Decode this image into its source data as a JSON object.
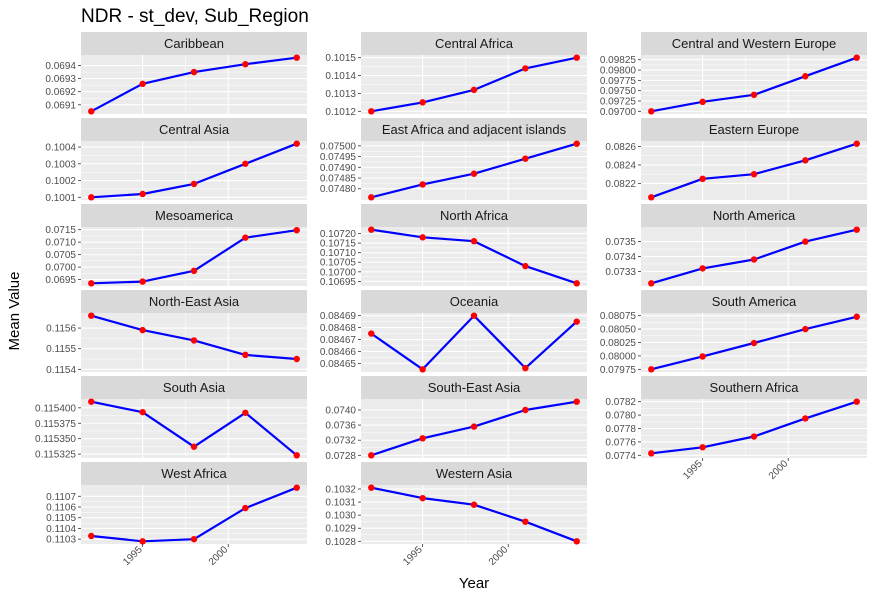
{
  "chart_data": {
    "type": "line",
    "title": "NDR - st_dev, Sub_Region",
    "xlabel": "Year",
    "ylabel": "Mean Value",
    "x": [
      1992,
      1995,
      1998,
      2001,
      2004
    ],
    "xlim": [
      1991.4,
      2004.6
    ],
    "x_ticks": [
      1995,
      2000
    ],
    "line_color": "#0000ff",
    "point_color": "#ff0000",
    "panel_bg": "#ebebeb",
    "strip_bg": "#d9d9d9",
    "grid_color": "#ffffff",
    "panels": [
      {
        "name": "Caribbean",
        "y": [
          0.06905,
          0.06926,
          0.06935,
          0.06941,
          0.06946
        ],
        "y_ticks": [
          "0.0691",
          "0.0692",
          "0.0693",
          "0.0694"
        ],
        "y_tick_values": [
          0.0691,
          0.0692,
          0.0693,
          0.0694
        ]
      },
      {
        "name": "Central Africa",
        "y": [
          0.1012,
          0.10125,
          0.10132,
          0.10144,
          0.1015
        ],
        "y_ticks": [
          "0.1012",
          "0.1013",
          "0.1014",
          "0.1015"
        ],
        "y_tick_values": [
          0.1012,
          0.1013,
          0.1014,
          0.1015
        ]
      },
      {
        "name": "Central and Western Europe",
        "y": [
          0.097,
          0.09723,
          0.0974,
          0.09785,
          0.0983
        ],
        "y_ticks": [
          "0.09700",
          "0.09725",
          "0.09750",
          "0.09775",
          "0.09800",
          "0.09825"
        ],
        "y_tick_values": [
          0.097,
          0.09725,
          0.0975,
          0.09775,
          0.098,
          0.09825
        ]
      },
      {
        "name": "Central Asia",
        "y": [
          0.1001,
          0.10012,
          0.10018,
          0.1003,
          0.10042
        ],
        "y_ticks": [
          "0.1001",
          "0.1002",
          "0.1003",
          "0.1004"
        ],
        "y_tick_values": [
          0.1001,
          0.1002,
          0.1003,
          0.1004
        ]
      },
      {
        "name": "East Africa and adjacent islands",
        "y": [
          0.07476,
          0.07482,
          0.07487,
          0.07494,
          0.07501
        ],
        "y_ticks": [
          "0.07480",
          "0.07485",
          "0.07490",
          "0.07495",
          "0.07500"
        ],
        "y_tick_values": [
          0.0748,
          0.07485,
          0.0749,
          0.07495,
          0.075
        ]
      },
      {
        "name": "Eastern Europe",
        "y": [
          0.08205,
          0.08225,
          0.0823,
          0.08245,
          0.08263
        ],
        "y_ticks": [
          "0.0822",
          "0.0824",
          "0.0826"
        ],
        "y_tick_values": [
          0.0822,
          0.0824,
          0.0826
        ]
      },
      {
        "name": "Mesoamerica",
        "y": [
          0.06935,
          0.06942,
          0.06985,
          0.07118,
          0.07148
        ],
        "y_ticks": [
          "0.0695",
          "0.0700",
          "0.0705",
          "0.0710",
          "0.0715"
        ],
        "y_tick_values": [
          0.0695,
          0.07,
          0.0705,
          0.071,
          0.0715
        ]
      },
      {
        "name": "North Africa",
        "y": [
          0.10722,
          0.10718,
          0.10716,
          0.10703,
          0.10694
        ],
        "y_ticks": [
          "0.10695",
          "0.10700",
          "0.10705",
          "0.10710",
          "0.10715",
          "0.10720"
        ],
        "y_tick_values": [
          0.10695,
          0.107,
          0.10705,
          0.1071,
          0.10715,
          0.1072
        ]
      },
      {
        "name": "North America",
        "y": [
          0.07322,
          0.07332,
          0.07338,
          0.0735,
          0.07358
        ],
        "y_ticks": [
          "0.0733",
          "0.0734",
          "0.0735"
        ],
        "y_tick_values": [
          0.0733,
          0.0734,
          0.0735
        ]
      },
      {
        "name": "North-East Asia",
        "y": [
          0.11566,
          0.11559,
          0.11554,
          0.11547,
          0.11545
        ],
        "y_ticks": [
          "0.1154",
          "0.1155",
          "0.1156"
        ],
        "y_tick_values": [
          0.1154,
          0.1155,
          0.1156
        ]
      },
      {
        "name": "Oceania",
        "y": [
          0.084675,
          0.084645,
          0.08469,
          0.084646,
          0.084685
        ],
        "y_ticks": [
          "0.08465",
          "0.08466",
          "0.08467",
          "0.08468",
          "0.08469"
        ],
        "y_tick_values": [
          0.08465,
          0.08466,
          0.08467,
          0.08468,
          0.08469
        ]
      },
      {
        "name": "South America",
        "y": [
          0.07975,
          0.07999,
          0.08024,
          0.0805,
          0.08073
        ],
        "y_ticks": [
          "0.07975",
          "0.08000",
          "0.08025",
          "0.08050",
          "0.08075"
        ],
        "y_tick_values": [
          0.07975,
          0.08,
          0.08025,
          0.0805,
          0.08075
        ]
      },
      {
        "name": "South Asia",
        "y": [
          0.11541,
          0.115393,
          0.115337,
          0.115392,
          0.115323
        ],
        "y_ticks": [
          "0.115325",
          "0.115350",
          "0.115375",
          "0.115400"
        ],
        "y_tick_values": [
          0.115325,
          0.11535,
          0.115375,
          0.1154
        ]
      },
      {
        "name": "South-East Asia",
        "y": [
          0.0728,
          0.07325,
          0.07356,
          0.074,
          0.07422
        ],
        "y_ticks": [
          "0.0728",
          "0.0732",
          "0.0736",
          "0.0740"
        ],
        "y_tick_values": [
          0.0728,
          0.0732,
          0.0736,
          0.074
        ]
      },
      {
        "name": "Southern Africa",
        "y": [
          0.07743,
          0.07752,
          0.07768,
          0.07795,
          0.0782
        ],
        "y_ticks": [
          "0.0774",
          "0.0776",
          "0.0778",
          "0.0780",
          "0.0782"
        ],
        "y_tick_values": [
          0.0774,
          0.0776,
          0.0778,
          0.078,
          0.0782
        ]
      },
      {
        "name": "West Africa",
        "y": [
          0.11033,
          0.11028,
          0.1103,
          0.11059,
          0.11078
        ],
        "y_ticks": [
          "0.1103",
          "0.1104",
          "0.1105",
          "0.1106",
          "0.1107"
        ],
        "y_tick_values": [
          0.1103,
          0.1104,
          0.1105,
          0.1106,
          0.1107
        ]
      },
      {
        "name": "Western Asia",
        "y": [
          0.10321,
          0.10313,
          0.10308,
          0.10295,
          0.1028
        ],
        "y_ticks": [
          "0.1028",
          "0.1029",
          "0.1030",
          "0.1031",
          "0.1032"
        ],
        "y_tick_values": [
          0.1028,
          0.1029,
          0.103,
          0.1031,
          0.1032
        ]
      }
    ]
  }
}
